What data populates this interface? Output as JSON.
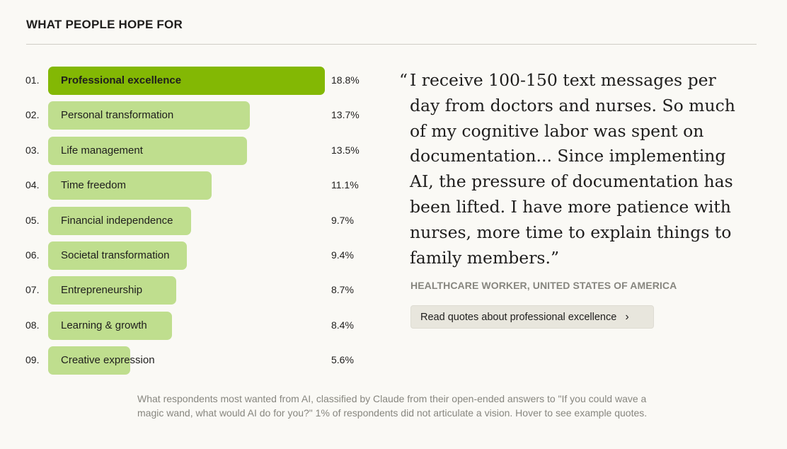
{
  "title": "WHAT PEOPLE HOPE FOR",
  "chart_data": {
    "type": "bar",
    "orientation": "horizontal",
    "title": "WHAT PEOPLE HOPE FOR",
    "unit": "%",
    "xlim": [
      0,
      18.8
    ],
    "ranks": [
      "01.",
      "02.",
      "03.",
      "04.",
      "05.",
      "06.",
      "07.",
      "08.",
      "09."
    ],
    "categories": [
      "Professional excellence",
      "Personal transformation",
      "Life management",
      "Time freedom",
      "Financial independence",
      "Societal transformation",
      "Entrepreneurship",
      "Learning & growth",
      "Creative expression"
    ],
    "values": [
      18.8,
      13.7,
      13.5,
      11.1,
      9.7,
      9.4,
      8.7,
      8.4,
      5.6
    ],
    "value_labels": [
      "18.8%",
      "13.7%",
      "13.5%",
      "11.1%",
      "9.7%",
      "9.4%",
      "8.7%",
      "8.4%",
      "5.6%"
    ],
    "highlighted_index": 0,
    "colors": {
      "highlight": "#83b804",
      "default": "#bfde8e"
    }
  },
  "quote": {
    "open_mark": "“",
    "text": "I receive 100-150 text messages per day from doctors and nurses. So much of my cognitive labor was spent on documentation... Since implementing AI, the pressure of documentation has been lifted. I have more patience with nurses, more time to explain things to family members.”",
    "attribution": "HEALTHCARE WORKER, UNITED STATES OF AMERICA",
    "button_label": "Read quotes about professional excellence",
    "button_icon": "chevron-right-icon"
  },
  "caption": "What respondents most wanted from AI, classified by Claude from their open-ended answers to \"If you could wave a magic wand, what would AI do for you?\" 1% of respondents did not articulate a vision. Hover to see example quotes."
}
